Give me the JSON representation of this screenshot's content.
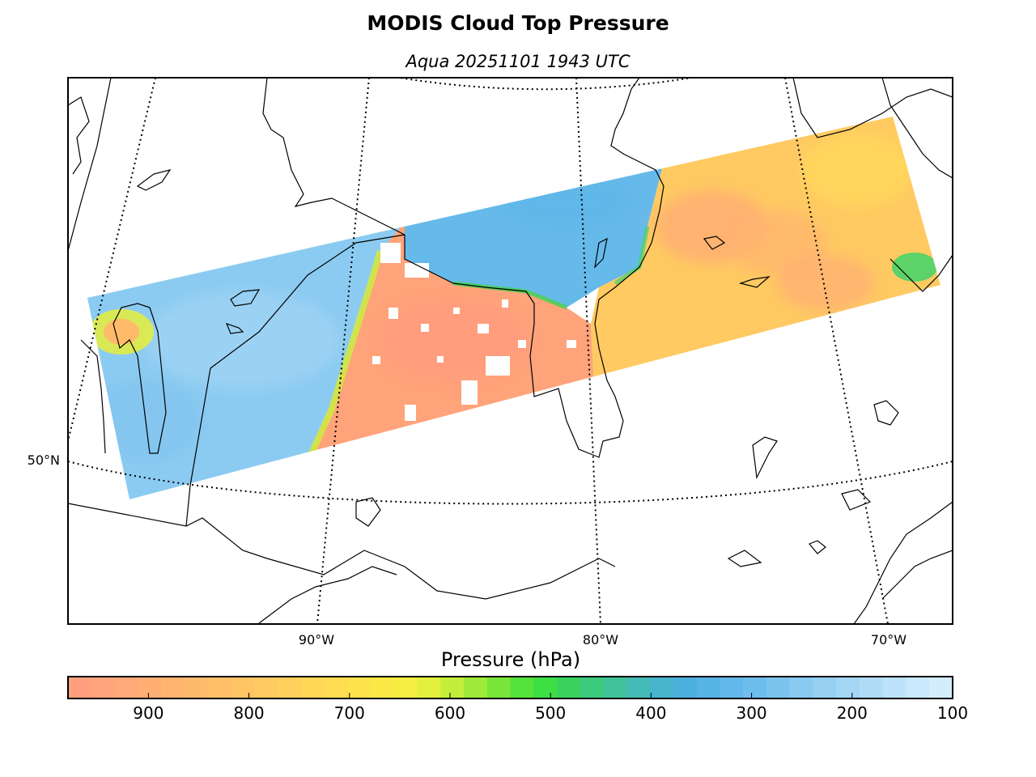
{
  "title": "MODIS Cloud Top Pressure",
  "subtitle": "Aqua 20251101 1943 UTC",
  "map": {
    "lat_labels": [
      "50°N"
    ],
    "lon_labels": [
      "90°W",
      "80°W",
      "70°W"
    ]
  },
  "colorbar": {
    "label": "Pressure (hPa)",
    "range": [
      980,
      100
    ],
    "ticks": [
      900,
      800,
      700,
      600,
      500,
      400,
      300,
      200,
      100
    ],
    "tick_labels": [
      "900",
      "800",
      "700",
      "600",
      "500",
      "400",
      "300",
      "200",
      "100"
    ],
    "colors": [
      "#ff9f80",
      "#ffa47c",
      "#ffa978",
      "#ffae74",
      "#ffb470",
      "#ffb96c",
      "#ffbf68",
      "#ffc464",
      "#ffca60",
      "#ffd05b",
      "#ffd656",
      "#ffdc51",
      "#fde24b",
      "#f9e845",
      "#f3ee40",
      "#e2f03c",
      "#c4ee3a",
      "#9fea38",
      "#78e638",
      "#55e23a",
      "#3ede45",
      "#39d25c",
      "#3bc97c",
      "#3fc29a",
      "#43bab5",
      "#47b4cc",
      "#4cb0de",
      "#56b3e6",
      "#62b8ea",
      "#6ebeed",
      "#7bc4ef",
      "#88caf1",
      "#95d0f3",
      "#a3d6f5",
      "#b0dcf7",
      "#bde2f9",
      "#cae8fb",
      "#d4edfd"
    ]
  },
  "swath": {
    "regions_hpa": {
      "west_region": 260,
      "central_region": 920,
      "north_central_region": 380,
      "east_region": 760
    }
  }
}
